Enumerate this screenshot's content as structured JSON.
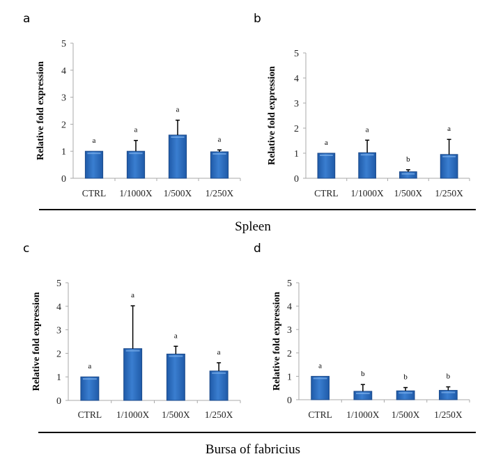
{
  "figure": {
    "group_labels": [
      "Spleen",
      "Bursa of fabricius"
    ],
    "bar_color": "#2e6bbd",
    "bar_edge_color": "#1c4a8a"
  },
  "chart_data": [
    {
      "type": "bar",
      "panel": "a",
      "group": "Spleen",
      "title": "",
      "xlabel": "",
      "ylabel": "Relative fold expression",
      "ylim": [
        0,
        5
      ],
      "yticks": [
        0,
        1,
        2,
        3,
        4,
        5
      ],
      "grid": false,
      "categories": [
        "CTRL",
        "1/1000X",
        "1/500X",
        "1/250X"
      ],
      "values": [
        1.0,
        1.0,
        1.6,
        0.98
      ],
      "error_upper": [
        0.0,
        0.4,
        0.55,
        0.07
      ],
      "significance": [
        "a",
        "a",
        "a",
        "a"
      ]
    },
    {
      "type": "bar",
      "panel": "b",
      "group": "Spleen",
      "title": "",
      "xlabel": "",
      "ylabel": "Relative fold expression",
      "ylim": [
        0,
        5
      ],
      "yticks": [
        0,
        1,
        2,
        3,
        4,
        5
      ],
      "grid": false,
      "categories": [
        "CTRL",
        "1/1000X",
        "1/500X",
        "1/250X"
      ],
      "values": [
        1.0,
        1.02,
        0.26,
        0.95
      ],
      "error_upper": [
        0.0,
        0.5,
        0.08,
        0.6
      ],
      "significance": [
        "a",
        "a",
        "b",
        "a"
      ]
    },
    {
      "type": "bar",
      "panel": "c",
      "group": "Bursa of fabricius",
      "title": "",
      "xlabel": "",
      "ylabel": "Relative fold expression",
      "ylim": [
        0,
        5
      ],
      "yticks": [
        0,
        1,
        2,
        3,
        4,
        5
      ],
      "grid": false,
      "categories": [
        "CTRL",
        "1/1000X",
        "1/500X",
        "1/250X"
      ],
      "values": [
        1.0,
        2.2,
        1.97,
        1.25
      ],
      "error_upper": [
        0.0,
        1.82,
        0.33,
        0.35
      ],
      "significance": [
        "a",
        "a",
        "a",
        "a"
      ]
    },
    {
      "type": "bar",
      "panel": "d",
      "group": "Bursa of fabricius",
      "title": "",
      "xlabel": "",
      "ylabel": "Relative fold expression",
      "ylim": [
        0,
        5
      ],
      "yticks": [
        0,
        1,
        2,
        3,
        4,
        5
      ],
      "grid": false,
      "categories": [
        "CTRL",
        "1/1000X",
        "1/500X",
        "1/250X"
      ],
      "values": [
        1.0,
        0.36,
        0.38,
        0.4
      ],
      "error_upper": [
        0.0,
        0.29,
        0.14,
        0.15
      ],
      "significance": [
        "a",
        "b",
        "b",
        "b"
      ]
    }
  ]
}
